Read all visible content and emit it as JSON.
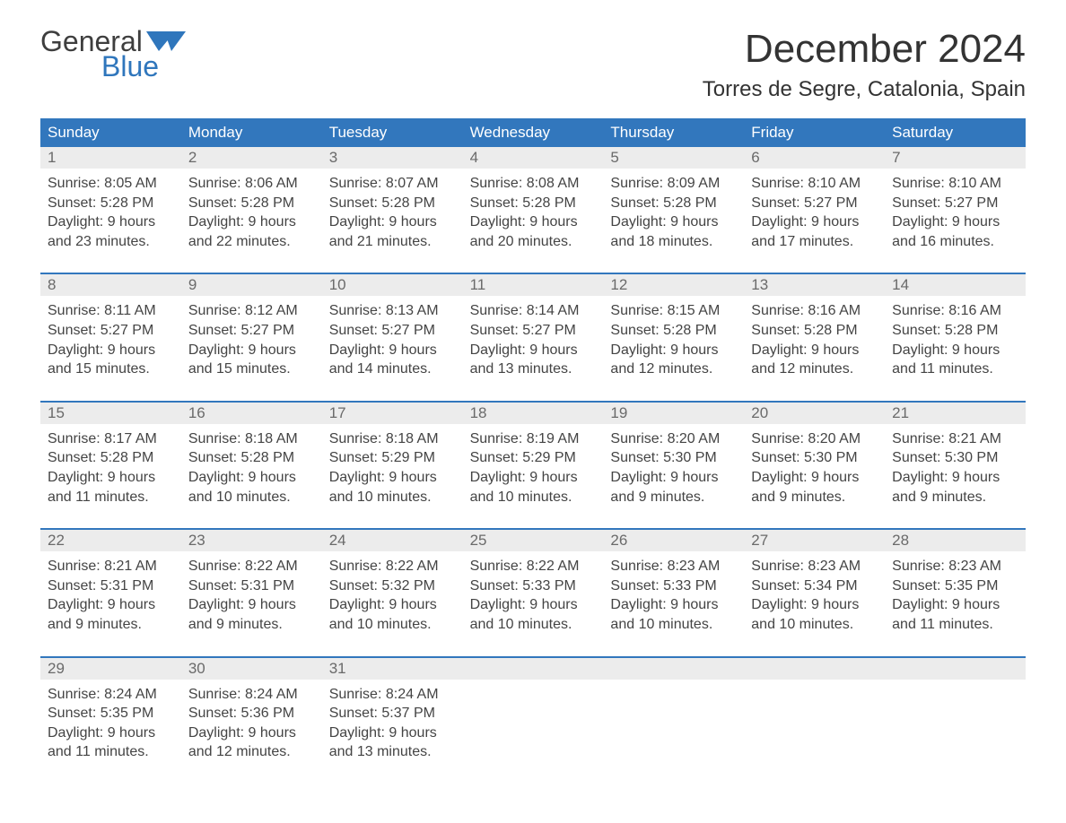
{
  "brand": {
    "word1": "General",
    "word2": "Blue",
    "accent_color": "#2f76bc"
  },
  "title": "December 2024",
  "location": "Torres de Segre, Catalonia, Spain",
  "colors": {
    "header_bg": "#3277bd",
    "header_text": "#ffffff",
    "daynum_bg": "#ececec",
    "daynum_text": "#6a6a6a",
    "body_text": "#444444",
    "week_border": "#3277bd",
    "page_bg": "#ffffff"
  },
  "typography": {
    "title_fontsize": 44,
    "location_fontsize": 24,
    "header_fontsize": 17,
    "daynum_fontsize": 17,
    "cell_fontsize": 16
  },
  "day_headers": [
    "Sunday",
    "Monday",
    "Tuesday",
    "Wednesday",
    "Thursday",
    "Friday",
    "Saturday"
  ],
  "weeks": [
    [
      {
        "n": "1",
        "sunrise": "Sunrise: 8:05 AM",
        "sunset": "Sunset: 5:28 PM",
        "d1": "Daylight: 9 hours",
        "d2": "and 23 minutes."
      },
      {
        "n": "2",
        "sunrise": "Sunrise: 8:06 AM",
        "sunset": "Sunset: 5:28 PM",
        "d1": "Daylight: 9 hours",
        "d2": "and 22 minutes."
      },
      {
        "n": "3",
        "sunrise": "Sunrise: 8:07 AM",
        "sunset": "Sunset: 5:28 PM",
        "d1": "Daylight: 9 hours",
        "d2": "and 21 minutes."
      },
      {
        "n": "4",
        "sunrise": "Sunrise: 8:08 AM",
        "sunset": "Sunset: 5:28 PM",
        "d1": "Daylight: 9 hours",
        "d2": "and 20 minutes."
      },
      {
        "n": "5",
        "sunrise": "Sunrise: 8:09 AM",
        "sunset": "Sunset: 5:28 PM",
        "d1": "Daylight: 9 hours",
        "d2": "and 18 minutes."
      },
      {
        "n": "6",
        "sunrise": "Sunrise: 8:10 AM",
        "sunset": "Sunset: 5:27 PM",
        "d1": "Daylight: 9 hours",
        "d2": "and 17 minutes."
      },
      {
        "n": "7",
        "sunrise": "Sunrise: 8:10 AM",
        "sunset": "Sunset: 5:27 PM",
        "d1": "Daylight: 9 hours",
        "d2": "and 16 minutes."
      }
    ],
    [
      {
        "n": "8",
        "sunrise": "Sunrise: 8:11 AM",
        "sunset": "Sunset: 5:27 PM",
        "d1": "Daylight: 9 hours",
        "d2": "and 15 minutes."
      },
      {
        "n": "9",
        "sunrise": "Sunrise: 8:12 AM",
        "sunset": "Sunset: 5:27 PM",
        "d1": "Daylight: 9 hours",
        "d2": "and 15 minutes."
      },
      {
        "n": "10",
        "sunrise": "Sunrise: 8:13 AM",
        "sunset": "Sunset: 5:27 PM",
        "d1": "Daylight: 9 hours",
        "d2": "and 14 minutes."
      },
      {
        "n": "11",
        "sunrise": "Sunrise: 8:14 AM",
        "sunset": "Sunset: 5:27 PM",
        "d1": "Daylight: 9 hours",
        "d2": "and 13 minutes."
      },
      {
        "n": "12",
        "sunrise": "Sunrise: 8:15 AM",
        "sunset": "Sunset: 5:28 PM",
        "d1": "Daylight: 9 hours",
        "d2": "and 12 minutes."
      },
      {
        "n": "13",
        "sunrise": "Sunrise: 8:16 AM",
        "sunset": "Sunset: 5:28 PM",
        "d1": "Daylight: 9 hours",
        "d2": "and 12 minutes."
      },
      {
        "n": "14",
        "sunrise": "Sunrise: 8:16 AM",
        "sunset": "Sunset: 5:28 PM",
        "d1": "Daylight: 9 hours",
        "d2": "and 11 minutes."
      }
    ],
    [
      {
        "n": "15",
        "sunrise": "Sunrise: 8:17 AM",
        "sunset": "Sunset: 5:28 PM",
        "d1": "Daylight: 9 hours",
        "d2": "and 11 minutes."
      },
      {
        "n": "16",
        "sunrise": "Sunrise: 8:18 AM",
        "sunset": "Sunset: 5:28 PM",
        "d1": "Daylight: 9 hours",
        "d2": "and 10 minutes."
      },
      {
        "n": "17",
        "sunrise": "Sunrise: 8:18 AM",
        "sunset": "Sunset: 5:29 PM",
        "d1": "Daylight: 9 hours",
        "d2": "and 10 minutes."
      },
      {
        "n": "18",
        "sunrise": "Sunrise: 8:19 AM",
        "sunset": "Sunset: 5:29 PM",
        "d1": "Daylight: 9 hours",
        "d2": "and 10 minutes."
      },
      {
        "n": "19",
        "sunrise": "Sunrise: 8:20 AM",
        "sunset": "Sunset: 5:30 PM",
        "d1": "Daylight: 9 hours",
        "d2": "and 9 minutes."
      },
      {
        "n": "20",
        "sunrise": "Sunrise: 8:20 AM",
        "sunset": "Sunset: 5:30 PM",
        "d1": "Daylight: 9 hours",
        "d2": "and 9 minutes."
      },
      {
        "n": "21",
        "sunrise": "Sunrise: 8:21 AM",
        "sunset": "Sunset: 5:30 PM",
        "d1": "Daylight: 9 hours",
        "d2": "and 9 minutes."
      }
    ],
    [
      {
        "n": "22",
        "sunrise": "Sunrise: 8:21 AM",
        "sunset": "Sunset: 5:31 PM",
        "d1": "Daylight: 9 hours",
        "d2": "and 9 minutes."
      },
      {
        "n": "23",
        "sunrise": "Sunrise: 8:22 AM",
        "sunset": "Sunset: 5:31 PM",
        "d1": "Daylight: 9 hours",
        "d2": "and 9 minutes."
      },
      {
        "n": "24",
        "sunrise": "Sunrise: 8:22 AM",
        "sunset": "Sunset: 5:32 PM",
        "d1": "Daylight: 9 hours",
        "d2": "and 10 minutes."
      },
      {
        "n": "25",
        "sunrise": "Sunrise: 8:22 AM",
        "sunset": "Sunset: 5:33 PM",
        "d1": "Daylight: 9 hours",
        "d2": "and 10 minutes."
      },
      {
        "n": "26",
        "sunrise": "Sunrise: 8:23 AM",
        "sunset": "Sunset: 5:33 PM",
        "d1": "Daylight: 9 hours",
        "d2": "and 10 minutes."
      },
      {
        "n": "27",
        "sunrise": "Sunrise: 8:23 AM",
        "sunset": "Sunset: 5:34 PM",
        "d1": "Daylight: 9 hours",
        "d2": "and 10 minutes."
      },
      {
        "n": "28",
        "sunrise": "Sunrise: 8:23 AM",
        "sunset": "Sunset: 5:35 PM",
        "d1": "Daylight: 9 hours",
        "d2": "and 11 minutes."
      }
    ],
    [
      {
        "n": "29",
        "sunrise": "Sunrise: 8:24 AM",
        "sunset": "Sunset: 5:35 PM",
        "d1": "Daylight: 9 hours",
        "d2": "and 11 minutes."
      },
      {
        "n": "30",
        "sunrise": "Sunrise: 8:24 AM",
        "sunset": "Sunset: 5:36 PM",
        "d1": "Daylight: 9 hours",
        "d2": "and 12 minutes."
      },
      {
        "n": "31",
        "sunrise": "Sunrise: 8:24 AM",
        "sunset": "Sunset: 5:37 PM",
        "d1": "Daylight: 9 hours",
        "d2": "and 13 minutes."
      },
      null,
      null,
      null,
      null
    ]
  ]
}
